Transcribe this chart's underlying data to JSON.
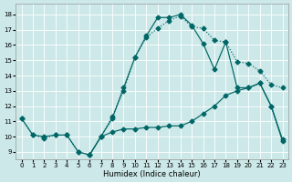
{
  "xlabel": "Humidex (Indice chaleur)",
  "bg_color": "#cce8e8",
  "grid_color": "#ffffff",
  "line_color": "#006666",
  "xlim": [
    -0.5,
    23.5
  ],
  "ylim": [
    8.5,
    18.7
  ],
  "xticks": [
    0,
    1,
    2,
    3,
    4,
    5,
    6,
    7,
    8,
    9,
    10,
    11,
    12,
    13,
    14,
    15,
    16,
    17,
    18,
    19,
    20,
    21,
    22,
    23
  ],
  "yticks": [
    9,
    10,
    11,
    12,
    13,
    14,
    15,
    16,
    17,
    18
  ],
  "line_dotted_x": [
    0,
    1,
    2,
    3,
    4,
    5,
    6,
    7,
    8,
    9,
    10,
    11,
    12,
    13,
    14,
    15,
    16,
    17,
    18,
    19,
    20,
    21,
    22,
    23
  ],
  "line_dotted_y": [
    11.2,
    10.1,
    9.9,
    10.1,
    10.1,
    9.0,
    8.8,
    10.0,
    11.3,
    13.0,
    15.2,
    16.5,
    17.1,
    17.6,
    17.9,
    17.2,
    17.1,
    16.3,
    16.2,
    14.9,
    14.8,
    14.3,
    13.4,
    13.2
  ],
  "line_solid_peak_x": [
    6,
    7,
    8,
    9,
    10,
    11,
    12,
    13,
    14,
    15,
    16,
    17,
    18,
    19,
    20,
    21,
    22,
    23
  ],
  "line_solid_peak_y": [
    8.8,
    10.0,
    11.2,
    13.2,
    15.2,
    16.6,
    17.8,
    17.8,
    18.0,
    17.3,
    16.1,
    14.4,
    16.2,
    13.2,
    13.2,
    13.5,
    12.0,
    9.7
  ],
  "line_flat_x": [
    0,
    1,
    2,
    3,
    4,
    5,
    6,
    7,
    8,
    9,
    10,
    11,
    12,
    13,
    14,
    15,
    16,
    17,
    18,
    19,
    20,
    21,
    22,
    23
  ],
  "line_flat_y": [
    11.2,
    10.1,
    10.0,
    10.1,
    10.1,
    9.0,
    8.8,
    10.0,
    10.3,
    10.5,
    10.5,
    10.6,
    10.6,
    10.7,
    10.7,
    11.0,
    11.5,
    12.0,
    12.7,
    13.0,
    13.2,
    13.5,
    12.0,
    9.8
  ]
}
